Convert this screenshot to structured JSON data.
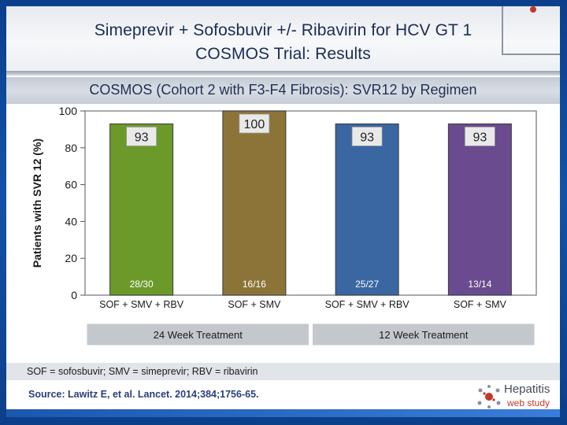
{
  "header": {
    "title_line1": "Simeprevir + Sofosbuvir +/- Ribavirin for HCV GT 1",
    "title_line2": "COSMOS Trial: Results"
  },
  "subtitle": "COSMOS (Cohort 2 with F3-F4 Fibrosis): SVR12 by Regimen",
  "chart_data": {
    "type": "bar",
    "ylabel": "Patients with SVR 12 (%)",
    "ylim": [
      0,
      100
    ],
    "yticks": [
      0,
      20,
      40,
      60,
      80,
      100
    ],
    "categories": [
      "SOF + SMV + RBV",
      "SOF + SMV",
      "SOF + SMV + RBV",
      "SOF + SMV"
    ],
    "values": [
      93,
      100,
      93,
      93
    ],
    "value_labels": [
      "93",
      "100",
      "93",
      "93"
    ],
    "n_labels": [
      "28/30",
      "16/16",
      "25/27",
      "13/14"
    ],
    "bar_colors": [
      "#6b9a2b",
      "#8c7438",
      "#3a66a2",
      "#6a4b8f"
    ],
    "groups": [
      {
        "label": "24 Week Treatment",
        "categories": [
          0,
          1
        ]
      },
      {
        "label": "12 Week Treatment",
        "categories": [
          2,
          3
        ]
      }
    ],
    "grid": false
  },
  "footnote": "SOF = sofosbuvir; SMV = simeprevir; RBV = ribavirin",
  "source": "Source: Lawitz E, et al.  Lancet. 2014;384;1756-65.",
  "logo": {
    "line1": "Hepatitis",
    "line2": "web study"
  },
  "colors": {
    "accent": "#1a2d54",
    "logo_red": "#c0392b"
  }
}
